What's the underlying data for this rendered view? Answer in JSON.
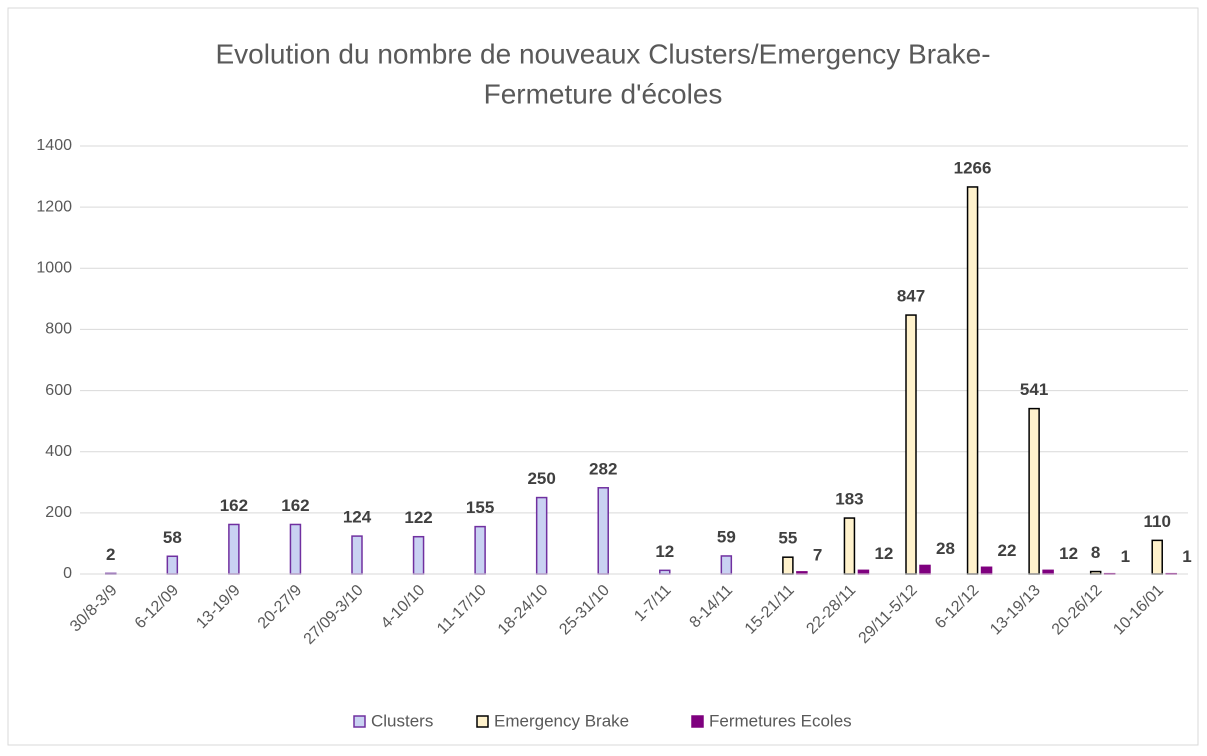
{
  "chart_data": {
    "type": "bar",
    "title": [
      "Evolution du nombre de nouveaux Clusters/Emergency Brake-",
      "Fermeture d'écoles"
    ],
    "categories": [
      "30/8-3/9",
      "6-12/09",
      "13-19/9",
      "20-27/9",
      "27/09-3/10",
      "4-10/10",
      "11-17/10",
      "18-24/10",
      "25-31/10",
      "1-7/11",
      "8-14/11",
      "15-21/11",
      "22-28/11",
      "29/11-5/12",
      "6-12/12",
      "13-19/13",
      "20-26/12",
      "10-16/01"
    ],
    "series": [
      {
        "name": "Clusters",
        "color": "#c9d2f2",
        "stroke": "#7030a0",
        "values": [
          2,
          58,
          162,
          162,
          124,
          122,
          155,
          250,
          282,
          12,
          59,
          null,
          null,
          null,
          null,
          null,
          null,
          null
        ]
      },
      {
        "name": "Emergency Brake",
        "color": "#fff2cc",
        "stroke": "#000000",
        "values": [
          null,
          null,
          null,
          null,
          null,
          null,
          null,
          null,
          null,
          null,
          null,
          55,
          183,
          847,
          1266,
          541,
          8,
          110
        ]
      },
      {
        "name": "Fermetures Ecoles",
        "color": "#7f007f",
        "stroke": "#7f007f",
        "values": [
          null,
          null,
          null,
          null,
          null,
          null,
          null,
          null,
          null,
          null,
          null,
          7,
          12,
          28,
          22,
          12,
          1,
          1
        ]
      }
    ],
    "ylim": [
      0,
      1400
    ],
    "yticks": [
      0,
      200,
      400,
      600,
      800,
      1000,
      1200,
      1400
    ],
    "grid": true,
    "legend": "bottom"
  }
}
